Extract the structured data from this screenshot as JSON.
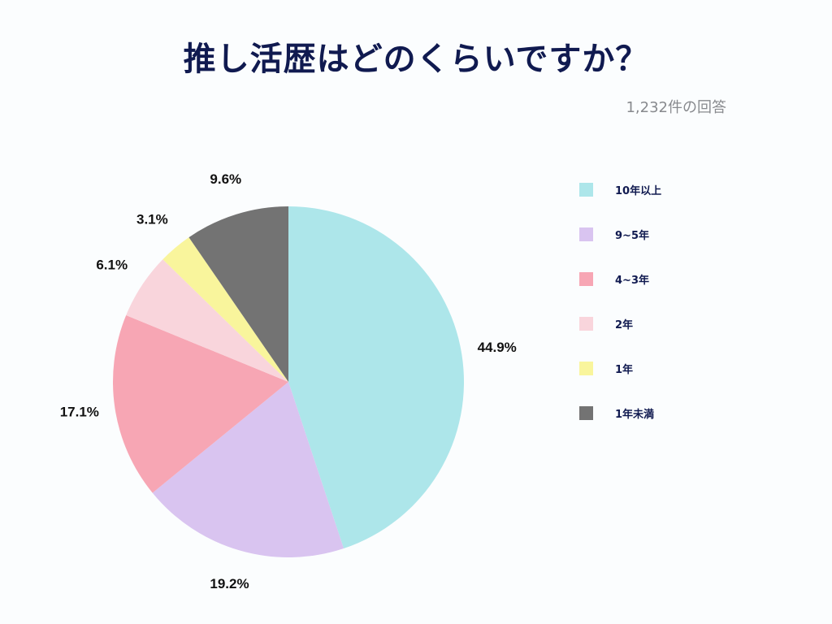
{
  "header": {
    "title": "推し活歴はどのくらいですか？",
    "subtitle": "1,232件の回答"
  },
  "chart_data": {
    "type": "pie",
    "categories": [
      "10年以上",
      "9~5年",
      "4~3年",
      "2年",
      "1年",
      "1年未満"
    ],
    "values": [
      44.9,
      19.2,
      17.1,
      6.1,
      3.1,
      9.6
    ],
    "value_labels": [
      "44.9%",
      "19.2%",
      "17.1%",
      "6.1%",
      "3.1%",
      "9.6%"
    ],
    "colors": [
      "#ade6ea",
      "#d9c4f0",
      "#f7a6b4",
      "#f9d5dc",
      "#f9f59c",
      "#737373"
    ],
    "legend_position": "right",
    "start_angle": "12 o'clock",
    "direction": "clockwise"
  }
}
